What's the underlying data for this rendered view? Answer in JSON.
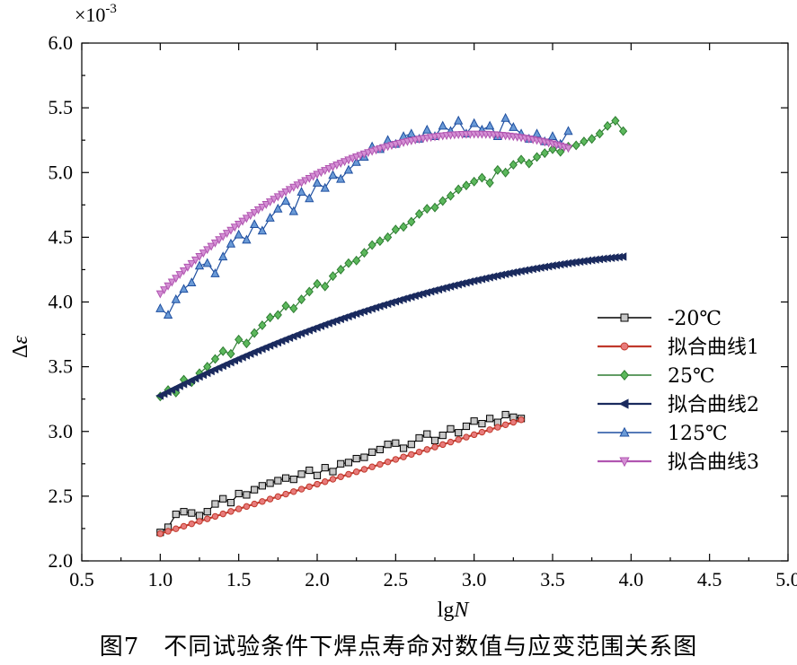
{
  "caption": "图7　不同试验条件下焊点寿命对数值与应变范围关系图",
  "chart_data": {
    "type": "line",
    "title": "",
    "xlabel": "lgN",
    "ylabel": "Δε",
    "y_multiplier": "×10^-3",
    "xlim": [
      0.5,
      5.0
    ],
    "ylim": [
      2.0,
      6.0
    ],
    "xticks": [
      0.5,
      1.0,
      1.5,
      2.0,
      2.5,
      3.0,
      3.5,
      4.0,
      4.5,
      5.0
    ],
    "yticks": [
      2.0,
      2.5,
      3.0,
      3.5,
      4.0,
      4.5,
      5.0,
      5.5,
      6.0
    ],
    "grid": false,
    "legend_position": "right",
    "series": [
      {
        "name": "-20℃",
        "kind": "data",
        "marker": "square",
        "color": "#000000",
        "fill": "#c8c8c8",
        "x": [
          1.0,
          1.05,
          1.1,
          1.15,
          1.2,
          1.25,
          1.3,
          1.35,
          1.4,
          1.45,
          1.5,
          1.55,
          1.6,
          1.65,
          1.7,
          1.75,
          1.8,
          1.85,
          1.9,
          1.95,
          2.0,
          2.05,
          2.1,
          2.15,
          2.2,
          2.25,
          2.3,
          2.35,
          2.4,
          2.45,
          2.5,
          2.55,
          2.6,
          2.65,
          2.7,
          2.75,
          2.8,
          2.85,
          2.9,
          2.95,
          3.0,
          3.05,
          3.1,
          3.15,
          3.2,
          3.25,
          3.3
        ],
        "y": [
          2.22,
          2.26,
          2.36,
          2.38,
          2.37,
          2.35,
          2.38,
          2.44,
          2.48,
          2.45,
          2.52,
          2.51,
          2.55,
          2.58,
          2.6,
          2.62,
          2.64,
          2.63,
          2.67,
          2.7,
          2.66,
          2.72,
          2.69,
          2.75,
          2.76,
          2.79,
          2.8,
          2.84,
          2.86,
          2.9,
          2.91,
          2.87,
          2.9,
          2.95,
          2.98,
          2.93,
          2.97,
          3.02,
          2.99,
          3.04,
          3.08,
          3.06,
          3.1,
          3.07,
          3.13,
          3.11,
          3.1
        ]
      },
      {
        "name": "拟合曲线1",
        "kind": "fit",
        "marker": "circle",
        "color": "#c0392b",
        "fill": "#e87b7b",
        "fit": {
          "type": "linear",
          "x0": 1.0,
          "x1": 3.3,
          "y0": 2.21,
          "y1": 3.09,
          "step": 0.05
        }
      },
      {
        "name": "25℃",
        "kind": "data",
        "marker": "diamond",
        "color": "#2e7d32",
        "fill": "#5cb85c",
        "x": [
          1.0,
          1.05,
          1.1,
          1.15,
          1.2,
          1.25,
          1.3,
          1.35,
          1.4,
          1.45,
          1.5,
          1.55,
          1.6,
          1.65,
          1.7,
          1.75,
          1.8,
          1.85,
          1.9,
          1.95,
          2.0,
          2.05,
          2.1,
          2.15,
          2.2,
          2.25,
          2.3,
          2.35,
          2.4,
          2.45,
          2.5,
          2.55,
          2.6,
          2.65,
          2.7,
          2.75,
          2.8,
          2.85,
          2.9,
          2.95,
          3.0,
          3.05,
          3.1,
          3.15,
          3.2,
          3.25,
          3.3,
          3.35,
          3.4,
          3.45,
          3.5,
          3.55,
          3.6,
          3.65,
          3.7,
          3.75,
          3.8,
          3.85,
          3.9,
          3.95
        ],
        "y": [
          3.27,
          3.32,
          3.3,
          3.4,
          3.38,
          3.45,
          3.5,
          3.56,
          3.62,
          3.6,
          3.71,
          3.68,
          3.76,
          3.82,
          3.88,
          3.9,
          3.97,
          3.95,
          4.02,
          4.08,
          4.14,
          4.12,
          4.2,
          4.25,
          4.3,
          4.32,
          4.38,
          4.44,
          4.47,
          4.5,
          4.56,
          4.58,
          4.62,
          4.68,
          4.72,
          4.73,
          4.78,
          4.82,
          4.87,
          4.9,
          4.93,
          4.96,
          4.92,
          5.02,
          5.0,
          5.06,
          5.1,
          5.07,
          5.12,
          5.15,
          5.18,
          5.16,
          5.2,
          5.21,
          5.24,
          5.26,
          5.3,
          5.36,
          5.4,
          5.32
        ]
      },
      {
        "name": "拟合曲线2",
        "kind": "fit",
        "marker": "triangle-left",
        "color": "#1a2a5e",
        "fill": "#1a2a5e",
        "fit": {
          "type": "quadratic",
          "x0": 1.0,
          "x1": 3.95,
          "a": -0.084,
          "b": 0.78,
          "c": 2.58,
          "step": 0.025
        }
      },
      {
        "name": "125℃",
        "kind": "data",
        "marker": "triangle-up",
        "color": "#1f4fa0",
        "fill": "#6a9ad6",
        "x": [
          1.0,
          1.05,
          1.1,
          1.15,
          1.2,
          1.25,
          1.3,
          1.35,
          1.4,
          1.45,
          1.5,
          1.55,
          1.6,
          1.65,
          1.7,
          1.75,
          1.8,
          1.85,
          1.9,
          1.95,
          2.0,
          2.05,
          2.1,
          2.15,
          2.2,
          2.25,
          2.3,
          2.35,
          2.4,
          2.45,
          2.5,
          2.55,
          2.6,
          2.65,
          2.7,
          2.75,
          2.8,
          2.85,
          2.9,
          2.95,
          3.0,
          3.05,
          3.1,
          3.15,
          3.2,
          3.25,
          3.3,
          3.35,
          3.4,
          3.45,
          3.5,
          3.55,
          3.6
        ],
        "y": [
          3.95,
          3.9,
          4.02,
          4.1,
          4.15,
          4.28,
          4.3,
          4.22,
          4.35,
          4.45,
          4.52,
          4.48,
          4.6,
          4.55,
          4.65,
          4.72,
          4.78,
          4.7,
          4.85,
          4.8,
          4.92,
          4.88,
          4.98,
          4.95,
          5.02,
          5.08,
          5.12,
          5.2,
          5.18,
          5.25,
          5.22,
          5.28,
          5.3,
          5.26,
          5.33,
          5.28,
          5.36,
          5.32,
          5.4,
          5.3,
          5.38,
          5.33,
          5.36,
          5.28,
          5.42,
          5.35,
          5.3,
          5.26,
          5.3,
          5.24,
          5.28,
          5.22,
          5.32
        ]
      },
      {
        "name": "拟合曲线3",
        "kind": "fit",
        "marker": "triangle-down",
        "color": "#b055b0",
        "fill": "#d48fd4",
        "fit": {
          "type": "quadratic",
          "x0": 1.0,
          "x1": 3.6,
          "a": -0.3065,
          "b": 1.8425,
          "c": 2.528,
          "step": 0.025
        }
      }
    ]
  }
}
